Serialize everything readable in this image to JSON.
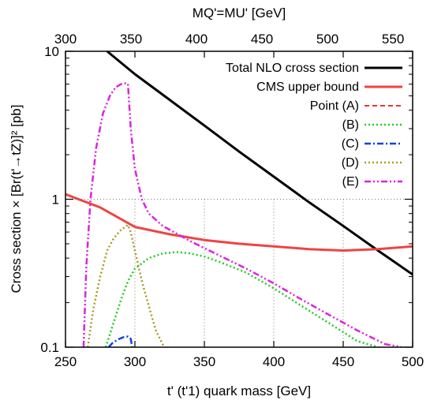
{
  "chart_data": {
    "type": "line",
    "title": "",
    "xlabel": "t' (t'1) quark mass [GeV]",
    "ylabel": "Cross section × [Br(t'→tZ)]² [pb]",
    "x2label": "MQ'=MU' [GeV]",
    "xlim": [
      250,
      500
    ],
    "ylim": [
      0.1,
      10
    ],
    "yscale": "log",
    "x2lim": [
      300,
      565
    ],
    "xticks": [
      "250",
      "300",
      "350",
      "400",
      "450",
      "500"
    ],
    "yticks": [
      "0.1",
      "1",
      "10"
    ],
    "x2ticks": [
      "300",
      "350",
      "400",
      "450",
      "500",
      "550"
    ],
    "grid": "dotted",
    "legend_position": "top-right",
    "series": [
      {
        "name": "Total NLO cross section",
        "color": "#000000",
        "dash": "solid",
        "x": [
          280,
          300,
          325,
          350,
          375,
          400,
          425,
          450,
          475,
          500
        ],
        "y": [
          10.0,
          7.0,
          4.7,
          3.15,
          2.1,
          1.42,
          0.96,
          0.66,
          0.45,
          0.31
        ]
      },
      {
        "name": "CMS upper bound",
        "color": "#ee4444",
        "dash": "solid",
        "x": [
          250,
          275,
          300,
          325,
          350,
          375,
          400,
          425,
          450,
          475,
          500
        ],
        "y": [
          1.08,
          0.88,
          0.65,
          0.58,
          0.53,
          0.5,
          0.48,
          0.46,
          0.45,
          0.46,
          0.48
        ]
      },
      {
        "name": "Point (A)",
        "color": "#ee3333",
        "dash": "dashed",
        "x": [],
        "y": []
      },
      {
        "name": "(B)",
        "color": "#22cc22",
        "dash": "dotted",
        "x": [
          279,
          285,
          290,
          295,
          300,
          310,
          320,
          330,
          340,
          350,
          360,
          380,
          400,
          420,
          440,
          460,
          475
        ],
        "y": [
          0.1,
          0.15,
          0.21,
          0.28,
          0.34,
          0.4,
          0.43,
          0.44,
          0.43,
          0.41,
          0.38,
          0.32,
          0.25,
          0.19,
          0.145,
          0.11,
          0.1
        ]
      },
      {
        "name": "(C)",
        "color": "#1144dd",
        "dash": "dashdot",
        "x": [
          281,
          284,
          288,
          292,
          295,
          297,
          298
        ],
        "y": [
          0.1,
          0.107,
          0.113,
          0.117,
          0.118,
          0.114,
          0.1
        ]
      },
      {
        "name": "(D)",
        "color": "#aa9922",
        "dash": "dotted",
        "x": [
          266,
          270,
          275,
          280,
          285,
          290,
          294,
          295,
          297,
          300,
          305,
          310,
          315,
          321
        ],
        "y": [
          0.1,
          0.18,
          0.3,
          0.45,
          0.55,
          0.62,
          0.66,
          0.67,
          0.6,
          0.45,
          0.28,
          0.19,
          0.13,
          0.1
        ]
      },
      {
        "name": "(E)",
        "color": "#dd22dd",
        "dash": "dashdotdot",
        "x": [
          263,
          265,
          268,
          272,
          277,
          282,
          286,
          290,
          294,
          295,
          297,
          300,
          305,
          310,
          320,
          340,
          360,
          380,
          400,
          420,
          440,
          460,
          480,
          492
        ],
        "y": [
          0.1,
          0.35,
          1.0,
          2.2,
          3.8,
          5.0,
          5.7,
          6.0,
          6.1,
          6.0,
          3.0,
          1.6,
          1.0,
          0.8,
          0.66,
          0.52,
          0.42,
          0.34,
          0.27,
          0.21,
          0.165,
          0.13,
          0.105,
          0.1
        ]
      }
    ]
  }
}
